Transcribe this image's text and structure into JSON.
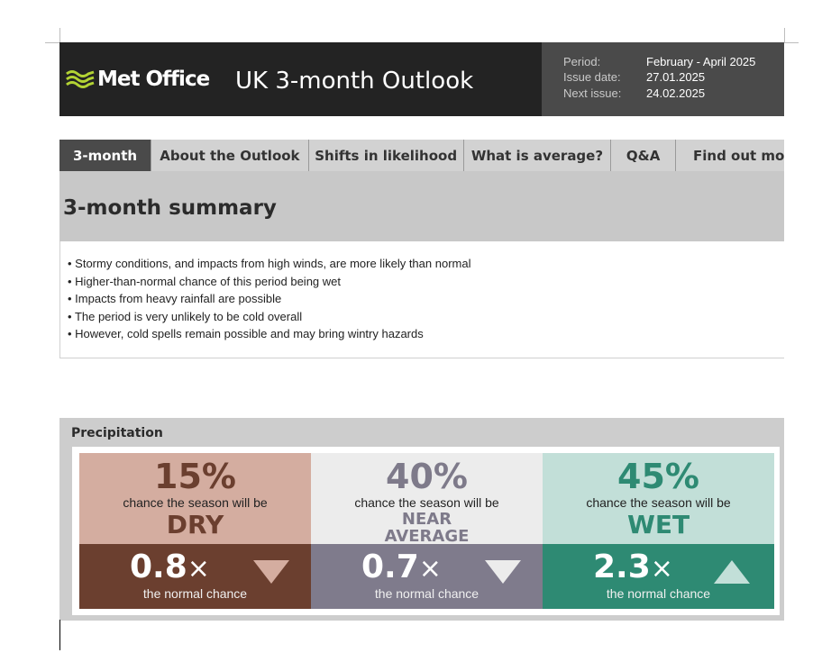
{
  "header": {
    "logo_text": "Met Office",
    "title": "UK 3-month Outlook",
    "meta": [
      {
        "label": "Period:",
        "value": "February - April 2025"
      },
      {
        "label": "Issue date:",
        "value": "27.01.2025"
      },
      {
        "label": "Next issue:",
        "value": "24.02.2025"
      }
    ]
  },
  "tabs": [
    {
      "label": "3-month",
      "active": true
    },
    {
      "label": "About the Outlook"
    },
    {
      "label": "Shifts in likelihood"
    },
    {
      "label": "What is average?"
    },
    {
      "label": "Q&A"
    },
    {
      "label": "Find out more"
    }
  ],
  "summary": {
    "title": "3-month summary",
    "bullets": [
      "Stormy conditions, and impacts from high winds, are more likely than normal",
      "Higher-than-normal chance of this period being wet",
      "Impacts from heavy rainfall are possible",
      "The period is very unlikely to be cold overall",
      "However, cold spells remain possible and may bring wintry hazards"
    ]
  },
  "precipitation": {
    "title": "Precipitation",
    "columns": [
      {
        "percent": "15%",
        "chance_text": "chance the season will be",
        "category": "DRY",
        "multiplier": "0.8",
        "times": "×",
        "normal_text": "the normal chance",
        "direction": "down",
        "top_color": "#d4ada0",
        "text_color": "#6b3f2f",
        "bottom_color": "#6b3f2f",
        "arrow_color": "#d4ada0"
      },
      {
        "percent": "40%",
        "chance_text": "chance the season will be",
        "category_line1": "NEAR",
        "category_line2": "AVERAGE",
        "multiplier": "0.7",
        "times": "×",
        "normal_text": "the normal chance",
        "direction": "down",
        "top_color": "#ececec",
        "text_color": "#7e7a8a",
        "bottom_color": "#7f7b8c",
        "arrow_color": "#ececec"
      },
      {
        "percent": "45%",
        "chance_text": "chance the season will be",
        "category": "WET",
        "multiplier": "2.3",
        "times": "×",
        "normal_text": "the normal chance",
        "direction": "up",
        "top_color": "#c2dfd8",
        "text_color": "#2e8a73",
        "bottom_color": "#2e8a73",
        "arrow_color": "#c2dfd8"
      }
    ]
  }
}
